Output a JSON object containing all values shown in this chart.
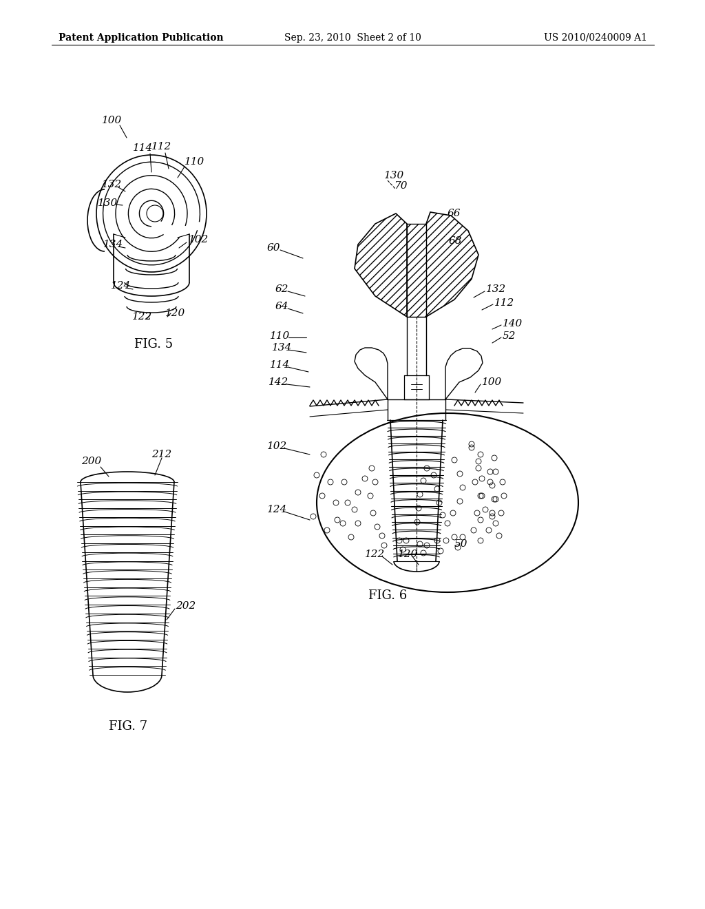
{
  "background_color": "#ffffff",
  "header_left": "Patent Application Publication",
  "header_center": "Sep. 23, 2010  Sheet 2 of 10",
  "header_right": "US 2010/0240009 A1",
  "fig5_label": "FIG. 5",
  "fig6_label": "FIG. 6",
  "fig7_label": "FIG. 7",
  "line_color": "#000000",
  "hatch_color": "#000000",
  "text_color": "#000000",
  "label_fontsize": 11,
  "header_fontsize": 10,
  "fig_label_fontsize": 13
}
